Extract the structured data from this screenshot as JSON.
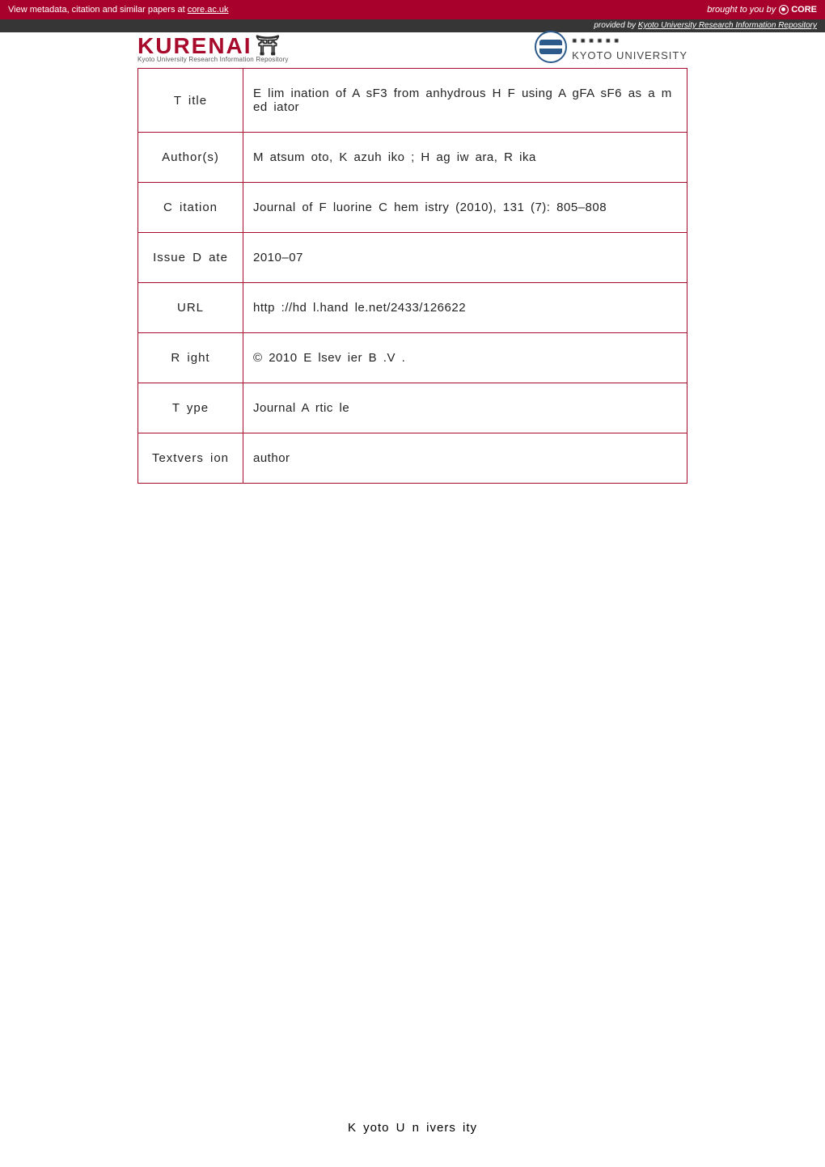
{
  "topbar": {
    "left_prefix": "View metadata, citation and similar papers at ",
    "left_link": "core.ac.uk",
    "right_prefix": "brought to you by",
    "right_logo": "CORE"
  },
  "subbar": {
    "prefix": "provided by ",
    "link": "Kyoto University Research Information Repository"
  },
  "header": {
    "kurenai": "KURENAI",
    "kurenai_sub": "Kyoto University Research Information Repository",
    "kyoto_en": "KYOTO UNIVERSITY"
  },
  "metadata": {
    "rows": [
      {
        "label": "T itle",
        "value": "E lim ination of A sF3 from  anhydrous H F using A gFA sF6 as a m ed iator"
      },
      {
        "label": "Author(s)",
        "value": "M atsum oto, K azuh iko ; H ag iw ara, R ika"
      },
      {
        "label": "C itation",
        "value": "Journal of F luorine C hem istry (2010), 131 (7): 805–808"
      },
      {
        "label": "Issue D ate",
        "value": "2010–07"
      },
      {
        "label": "URL",
        "value": "http ://hd l.hand le.net/2433/126622"
      },
      {
        "label": "R ight",
        "value": "©  2010 E lsev ier B .V ."
      },
      {
        "label": "T ype",
        "value": "Journal A rtic le"
      },
      {
        "label": "Textvers ion",
        "value": "author"
      }
    ]
  },
  "footer": "K yoto U n ivers ity"
}
